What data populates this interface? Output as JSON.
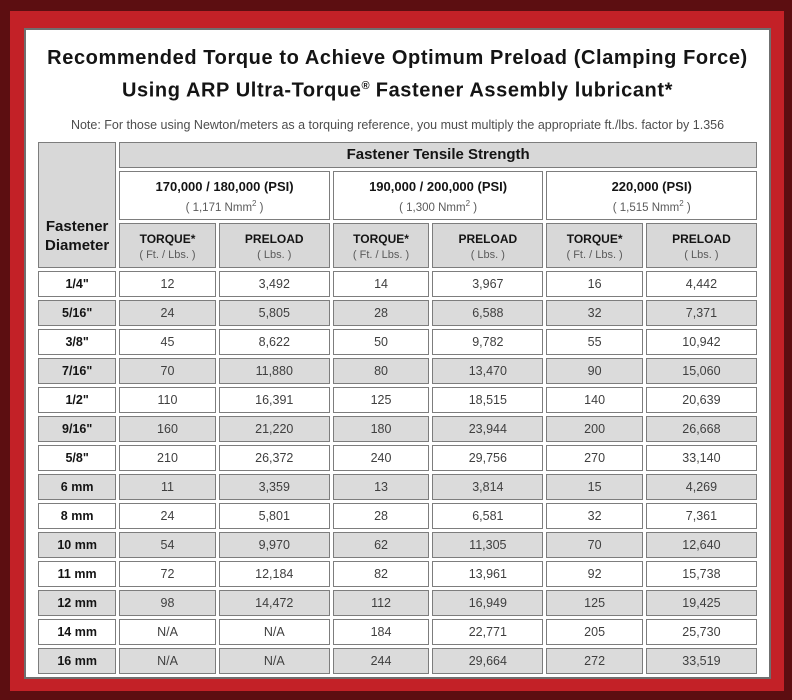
{
  "colors": {
    "outer_frame": "#5c0e11",
    "red_border": "#c32127",
    "header_gray": "#d8d8d8",
    "row_shade_gray": "#dbdbdb",
    "cell_border": "#7d7d7d"
  },
  "title": {
    "line1": "Recommended Torque to Achieve Optimum Preload (Clamping Force)",
    "line2_pre": "Using ARP Ultra-Torque",
    "line2_sup": "®",
    "line2_post": " Fastener Assembly lubricant*"
  },
  "note": "Note: For those using Newton/meters as a torquing reference, you must multiply the appropriate ft./lbs. factor by 1.356",
  "table": {
    "corner_header": {
      "line1": "Fastener",
      "line2": "Diameter"
    },
    "tensile_header": "Fastener Tensile Strength",
    "groups": [
      {
        "psi": "170,000 / 180,000 (PSI)",
        "nmm_pre": "( 1,171 Nmm",
        "nmm_sup": "2",
        "nmm_post": " )"
      },
      {
        "psi": "190,000 / 200,000 (PSI)",
        "nmm_pre": "( 1,300 Nmm",
        "nmm_sup": "2",
        "nmm_post": " )"
      },
      {
        "psi": "220,000 (PSI)",
        "nmm_pre": "( 1,515 Nmm",
        "nmm_sup": "2",
        "nmm_post": " )"
      }
    ],
    "col_headers": {
      "torque_label": "TORQUE*",
      "torque_sub": "( Ft. / Lbs. )",
      "preload_label": "PRELOAD",
      "preload_sub": "( Lbs. )"
    },
    "rows": [
      {
        "diameter": "1/4\"",
        "values": [
          "12",
          "3,492",
          "14",
          "3,967",
          "16",
          "4,442"
        ]
      },
      {
        "diameter": "5/16\"",
        "values": [
          "24",
          "5,805",
          "28",
          "6,588",
          "32",
          "7,371"
        ]
      },
      {
        "diameter": "3/8\"",
        "values": [
          "45",
          "8,622",
          "50",
          "9,782",
          "55",
          "10,942"
        ]
      },
      {
        "diameter": "7/16\"",
        "values": [
          "70",
          "11,880",
          "80",
          "13,470",
          "90",
          "15,060"
        ]
      },
      {
        "diameter": "1/2\"",
        "values": [
          "110",
          "16,391",
          "125",
          "18,515",
          "140",
          "20,639"
        ]
      },
      {
        "diameter": "9/16\"",
        "values": [
          "160",
          "21,220",
          "180",
          "23,944",
          "200",
          "26,668"
        ]
      },
      {
        "diameter": "5/8\"",
        "values": [
          "210",
          "26,372",
          "240",
          "29,756",
          "270",
          "33,140"
        ]
      },
      {
        "diameter": "6 mm",
        "values": [
          "11",
          "3,359",
          "13",
          "3,814",
          "15",
          "4,269"
        ]
      },
      {
        "diameter": "8 mm",
        "values": [
          "24",
          "5,801",
          "28",
          "6,581",
          "32",
          "7,361"
        ]
      },
      {
        "diameter": "10 mm",
        "values": [
          "54",
          "9,970",
          "62",
          "11,305",
          "70",
          "12,640"
        ]
      },
      {
        "diameter": "11 mm",
        "values": [
          "72",
          "12,184",
          "82",
          "13,961",
          "92",
          "15,738"
        ]
      },
      {
        "diameter": "12 mm",
        "values": [
          "98",
          "14,472",
          "112",
          "16,949",
          "125",
          "19,425"
        ]
      },
      {
        "diameter": "14 mm",
        "values": [
          "N/A",
          "N/A",
          "184",
          "22,771",
          "205",
          "25,730"
        ]
      },
      {
        "diameter": "16 mm",
        "values": [
          "N/A",
          "N/A",
          "244",
          "29,664",
          "272",
          "33,519"
        ]
      }
    ]
  }
}
